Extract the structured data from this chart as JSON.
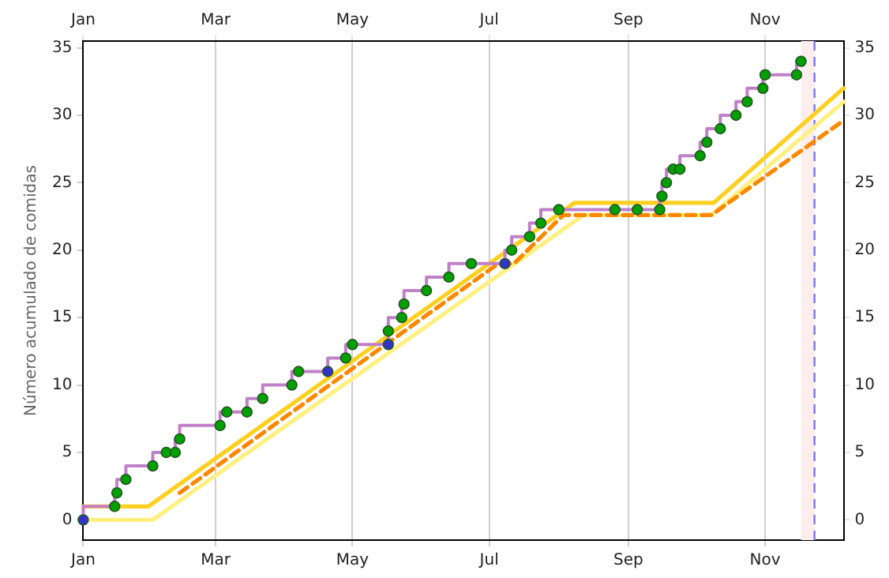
{
  "chart_data": {
    "type": "step",
    "ylabel": "Número acumulado de comidas",
    "xlim": [
      "--01-01",
      "--12-06"
    ],
    "xticks": [
      {
        "value": "--01-01",
        "label": "Jan"
      },
      {
        "value": "--03-01",
        "label": "Mar"
      },
      {
        "value": "--05-01",
        "label": "May"
      },
      {
        "value": "--07-01",
        "label": "Jul"
      },
      {
        "value": "--09-01",
        "label": "Sep"
      },
      {
        "value": "--11-01",
        "label": "Nov"
      }
    ],
    "x2lim": [
      "--01-01",
      "--12-06"
    ],
    "x2ticks": [
      {
        "value": "--01-01",
        "label": "Jan"
      },
      {
        "value": "--03-01",
        "label": "Mar"
      },
      {
        "value": "--05-01",
        "label": "May"
      },
      {
        "value": "--07-01",
        "label": "Jul"
      },
      {
        "value": "--09-01",
        "label": "Sep"
      },
      {
        "value": "--11-01",
        "label": "Nov"
      }
    ],
    "ylim": [
      -1.5,
      35.5
    ],
    "yticks": [
      0,
      5,
      10,
      15,
      20,
      25,
      30,
      35
    ],
    "y2lim": [
      -1.5,
      35.5
    ],
    "y2ticks": [
      0,
      5,
      10,
      15,
      20,
      25,
      30,
      35
    ],
    "grid": "x",
    "legend": false,
    "bands": [
      {
        "axis": "x",
        "from": "--11-17",
        "to": "--11-23",
        "color": "#fdeeee"
      }
    ],
    "ref_lines": [
      {
        "axis": "x",
        "value": "--11-23",
        "color": "#7777ff",
        "line_style": "dashed"
      }
    ],
    "series": [
      {
        "type": "line",
        "color": "#fff080",
        "line_style": "solid",
        "marker": "none",
        "x": [
          "--01-01",
          "--02-01",
          "--08-12",
          "--10-08",
          "--12-06"
        ],
        "values": [
          0,
          0,
          22.6,
          22.6,
          31
        ]
      },
      {
        "type": "line",
        "color": "#ffd020",
        "line_style": "solid",
        "marker": "none",
        "x": [
          "--01-01",
          "--01-30",
          "--08-08",
          "--10-09",
          "--12-06"
        ],
        "values": [
          1,
          1,
          23.5,
          23.5,
          32
        ]
      },
      {
        "type": "line",
        "color": "#ff8800",
        "line_style": "dashed",
        "marker": "none",
        "x": [
          "--02-13",
          "--07-05",
          "--07-12",
          "--08-03",
          "--10-08",
          "--12-05"
        ],
        "values": [
          2,
          19,
          19,
          22.6,
          22.6,
          29.5
        ]
      },
      {
        "color": "#c080c8",
        "marker": "circle",
        "line_style": "solid",
        "x": [
          "--01-01",
          "--01-15",
          "--01-16",
          "--01-20",
          "--02-01",
          "--02-07",
          "--02-11",
          "--02-13",
          "--03-03",
          "--03-06",
          "--03-15",
          "--03-22",
          "--04-04",
          "--04-07",
          "--04-20",
          "--04-28",
          "--05-01",
          "--05-17",
          "--05-17",
          "--05-23",
          "--05-24",
          "--06-03",
          "--06-13",
          "--06-23",
          "--07-08",
          "--07-11",
          "--07-19",
          "--07-24",
          "--08-01",
          "--08-26",
          "--09-05",
          "--09-15",
          "--09-16",
          "--09-18",
          "--09-21",
          "--09-24",
          "--10-03",
          "--10-06",
          "--10-12",
          "--10-19",
          "--10-24",
          "--10-31",
          "--11-01",
          "--11-15",
          "--11-16",
          "--11-17"
        ],
        "values": [
          0,
          1,
          2,
          3,
          4,
          5,
          5,
          6,
          7,
          8,
          8,
          9,
          10,
          11,
          11,
          12,
          13,
          13,
          14,
          15,
          16,
          17,
          18,
          19,
          19,
          20,
          21,
          22,
          23,
          23,
          23,
          23,
          24,
          25,
          26,
          26,
          27,
          28,
          29,
          30,
          31,
          32,
          33,
          33,
          null,
          34
        ],
        "colors": [
          "#3333cc",
          "#00a000",
          "#00a000",
          "#00a000",
          "#00a000",
          "#00a000",
          "#00a000",
          "#00a000",
          "#00a000",
          "#00a000",
          "#00a000",
          "#00a000",
          "#00a000",
          "#00a000",
          "#3333cc",
          "#00a000",
          "#00a000",
          "#3333cc",
          "#00a000",
          "#00a000",
          "#00a000",
          "#00a000",
          "#00a000",
          "#00a000",
          "#3333cc",
          "#00a000",
          "#00a000",
          "#00a000",
          "#00a000",
          "#00a000",
          "#00a000",
          "#00a000",
          "#00a000",
          "#00a000",
          "#00a000",
          "#00a000",
          "#00a000",
          "#00a000",
          "#00a000",
          "#00a000",
          "#00a000",
          "#00a000",
          "#00a000",
          "#00a000",
          "#00a000",
          "#00a000"
        ]
      }
    ]
  }
}
